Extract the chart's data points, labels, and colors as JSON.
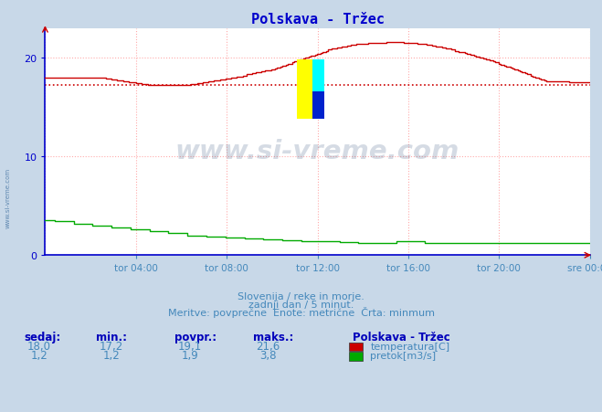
{
  "title": "Polskava - Tržec",
  "title_color": "#0000cc",
  "bg_color": "#c8d8e8",
  "plot_bg_color": "#ffffff",
  "grid_color": "#ffaaaa",
  "grid_style": ":",
  "xlabel_ticks": [
    "tor 04:00",
    "tor 08:00",
    "tor 12:00",
    "tor 16:00",
    "tor 20:00",
    "sre 00:00"
  ],
  "ylabel_ticks": [
    0,
    10,
    20
  ],
  "ylim": [
    0,
    23.0
  ],
  "xlim": [
    0,
    288
  ],
  "temp_color": "#cc0000",
  "flow_color": "#00aa00",
  "min_line_value": 17.2,
  "min_line_color": "#cc0000",
  "min_line_style": ":",
  "footer_color": "#4488bb",
  "footer_line1": "Slovenija / reke in morje.",
  "footer_line2": "zadnji dan / 5 minut.",
  "footer_line3": "Meritve: povprečne  Enote: metrične  Črta: minmum",
  "table_headers": [
    "sedaj:",
    "min.:",
    "povpr.:",
    "maks.:"
  ],
  "table_temp": [
    "18,0",
    "17,2",
    "19,1",
    "21,6"
  ],
  "table_flow": [
    "1,2",
    "1,2",
    "1,9",
    "3,8"
  ],
  "legend_title": "Polskava - Tržec",
  "legend_temp": "temperatura[C]",
  "legend_flow": "pretok[m3/s]",
  "axis_color": "#0000cc",
  "watermark_text": "www.si-vreme.com",
  "watermark_color": "#1a3a6a",
  "watermark_alpha": 0.18,
  "sidebar_text": "www.si-vreme.com",
  "sidebar_color": "#336699"
}
